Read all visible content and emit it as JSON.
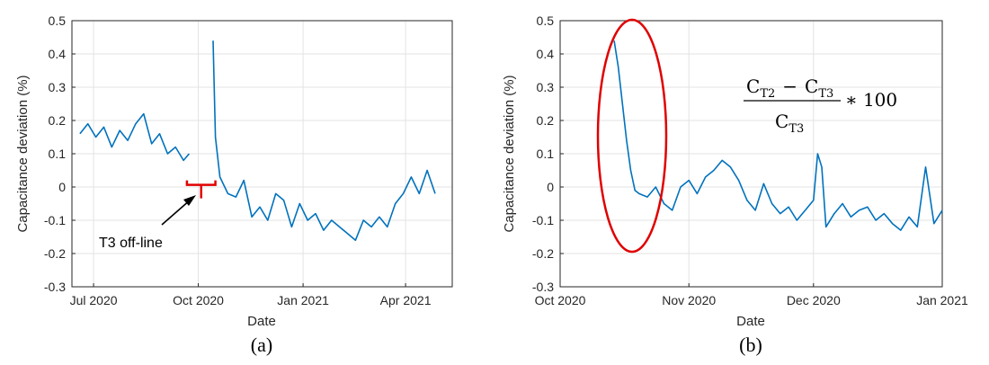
{
  "chart_data": [
    {
      "type": "line",
      "panel_label": "(a)",
      "xlabel": "Date",
      "ylabel": "Capacitance deviation (%)",
      "ylim": [
        -0.3,
        0.5
      ],
      "yticks": [
        "0.5",
        "0.4",
        "0.3",
        "0.2",
        "0.1",
        "0",
        "-0.1",
        "-0.2",
        "-0.3"
      ],
      "x_tick_labels": [
        "Jul 2020",
        "Oct 2020",
        "Jan 2021",
        "Apr 2021"
      ],
      "x_tick_dates": [
        "2020-07-01",
        "2020-10-01",
        "2021-01-01",
        "2021-04-01"
      ],
      "xlim": [
        "2020-06-12",
        "2021-05-12"
      ],
      "grid": true,
      "line_color": "#0072BD",
      "annotation": "T3 off-line",
      "offline_range": [
        "2020-09-21",
        "2020-10-16"
      ],
      "segments": [
        {
          "x": [
            "2020-06-19",
            "2020-06-26",
            "2020-07-03",
            "2020-07-10",
            "2020-07-17",
            "2020-07-24",
            "2020-07-31",
            "2020-08-07",
            "2020-08-14",
            "2020-08-21",
            "2020-08-28",
            "2020-09-04",
            "2020-09-11",
            "2020-09-18",
            "2020-09-23"
          ],
          "y": [
            0.16,
            0.19,
            0.15,
            0.18,
            0.12,
            0.17,
            0.14,
            0.19,
            0.22,
            0.13,
            0.16,
            0.1,
            0.12,
            0.08,
            0.1
          ]
        },
        {
          "x": [
            "2020-10-14",
            "2020-10-16",
            "2020-10-20",
            "2020-10-27",
            "2020-11-03",
            "2020-11-10",
            "2020-11-17",
            "2020-11-24",
            "2020-12-01",
            "2020-12-08",
            "2020-12-15",
            "2020-12-22",
            "2020-12-29",
            "2021-01-05",
            "2021-01-12",
            "2021-01-19",
            "2021-01-26",
            "2021-02-02",
            "2021-02-09",
            "2021-02-16",
            "2021-02-23",
            "2021-03-02",
            "2021-03-09",
            "2021-03-16",
            "2021-03-23",
            "2021-03-30",
            "2021-04-06",
            "2021-04-13",
            "2021-04-20",
            "2021-04-27"
          ],
          "y": [
            0.44,
            0.15,
            0.03,
            -0.02,
            -0.03,
            0.02,
            -0.09,
            -0.06,
            -0.1,
            -0.02,
            -0.04,
            -0.12,
            -0.05,
            -0.1,
            -0.08,
            -0.13,
            -0.1,
            -0.12,
            -0.14,
            -0.16,
            -0.1,
            -0.12,
            -0.09,
            -0.12,
            -0.05,
            -0.02,
            0.03,
            -0.02,
            0.05,
            -0.02
          ]
        }
      ]
    },
    {
      "type": "line",
      "panel_label": "(b)",
      "xlabel": "Date",
      "ylabel": "Capacitance deviation (%)",
      "ylim": [
        -0.3,
        0.5
      ],
      "yticks": [
        "0.5",
        "0.4",
        "0.3",
        "0.2",
        "0.1",
        "0",
        "-0.1",
        "-0.2",
        "-0.3"
      ],
      "x_tick_labels": [
        "Oct 2020",
        "Nov 2020",
        "Dec 2020",
        "Jan 2021"
      ],
      "x_tick_dates": [
        "2020-10-01",
        "2020-11-01",
        "2020-12-01",
        "2021-01-01"
      ],
      "xlim": [
        "2020-10-01",
        "2021-01-01"
      ],
      "grid": true,
      "line_color": "#0072BD",
      "equation": {
        "num_c1": "C",
        "num_s1": "T2",
        "minus": "−",
        "num_c2": "C",
        "num_s2": "T3",
        "den_c": "C",
        "den_s": "T3",
        "tail": "∗ 100"
      },
      "x": [
        "2020-10-14",
        "2020-10-15",
        "2020-10-16",
        "2020-10-17",
        "2020-10-18",
        "2020-10-19",
        "2020-10-20",
        "2020-10-22",
        "2020-10-24",
        "2020-10-26",
        "2020-10-28",
        "2020-10-30",
        "2020-11-01",
        "2020-11-03",
        "2020-11-05",
        "2020-11-07",
        "2020-11-09",
        "2020-11-11",
        "2020-11-13",
        "2020-11-15",
        "2020-11-17",
        "2020-11-19",
        "2020-11-21",
        "2020-11-23",
        "2020-11-25",
        "2020-11-27",
        "2020-11-29",
        "2020-12-01",
        "2020-12-02",
        "2020-12-03",
        "2020-12-04",
        "2020-12-06",
        "2020-12-08",
        "2020-12-10",
        "2020-12-12",
        "2020-12-14",
        "2020-12-16",
        "2020-12-18",
        "2020-12-20",
        "2020-12-22",
        "2020-12-24",
        "2020-12-26",
        "2020-12-28",
        "2020-12-30",
        "2021-01-01"
      ],
      "y": [
        0.44,
        0.36,
        0.25,
        0.14,
        0.05,
        -0.01,
        -0.02,
        -0.03,
        0.0,
        -0.05,
        -0.07,
        0.0,
        0.02,
        -0.02,
        0.03,
        0.05,
        0.08,
        0.06,
        0.02,
        -0.04,
        -0.07,
        0.01,
        -0.05,
        -0.08,
        -0.06,
        -0.1,
        -0.07,
        -0.04,
        0.1,
        0.06,
        -0.12,
        -0.08,
        -0.05,
        -0.09,
        -0.07,
        -0.06,
        -0.1,
        -0.08,
        -0.11,
        -0.13,
        -0.09,
        -0.12,
        0.06,
        -0.11,
        -0.07
      ]
    }
  ]
}
